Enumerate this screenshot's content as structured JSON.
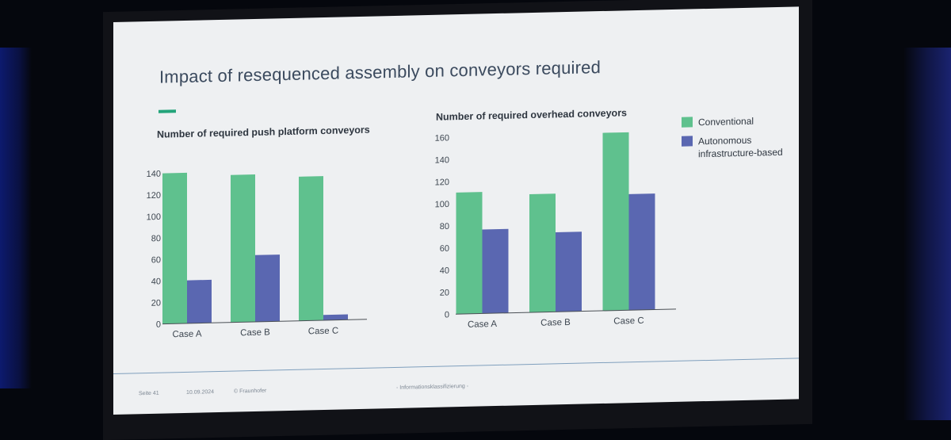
{
  "slide": {
    "title": "Impact of resequenced assembly on conveyors required",
    "footer": {
      "page": "Seite 41",
      "date": "10.09.2024",
      "copyright": "© Fraunhofer",
      "classification": "- Informationsklassifizierung -"
    }
  },
  "colors": {
    "conventional": "#5fc18e",
    "autonomous": "#5a67b1",
    "axis": "#4a4f55",
    "text": "#2e3640"
  },
  "chart_data": [
    {
      "type": "bar",
      "title": "Number of required push platform conveyors",
      "categories": [
        "Case A",
        "Case B",
        "Case C"
      ],
      "series": [
        {
          "name": "Conventional",
          "values": [
            140,
            137,
            134
          ]
        },
        {
          "name": "Autonomous infrastructure-based",
          "values": [
            40,
            62,
            5
          ]
        }
      ],
      "ylim": [
        0,
        140
      ],
      "yticks": [
        "0",
        "20",
        "40",
        "60",
        "80",
        "100",
        "120",
        "140"
      ],
      "xlabel": "",
      "ylabel": "",
      "grid": false
    },
    {
      "type": "bar",
      "title": "Number of required overhead conveyors",
      "categories": [
        "Case A",
        "Case B",
        "Case C"
      ],
      "series": [
        {
          "name": "Conventional",
          "values": [
            110,
            107,
            161
          ]
        },
        {
          "name": "Autonomous infrastructure-based",
          "values": [
            76,
            72,
            105
          ]
        }
      ],
      "ylim": [
        0,
        160
      ],
      "yticks": [
        "0",
        "20",
        "40",
        "60",
        "80",
        "100",
        "120",
        "140",
        "160"
      ],
      "xlabel": "",
      "ylabel": "",
      "grid": false,
      "legend": {
        "position": "right",
        "entries": [
          "Conventional",
          "Autonomous",
          "infrastructure-based"
        ]
      }
    }
  ]
}
